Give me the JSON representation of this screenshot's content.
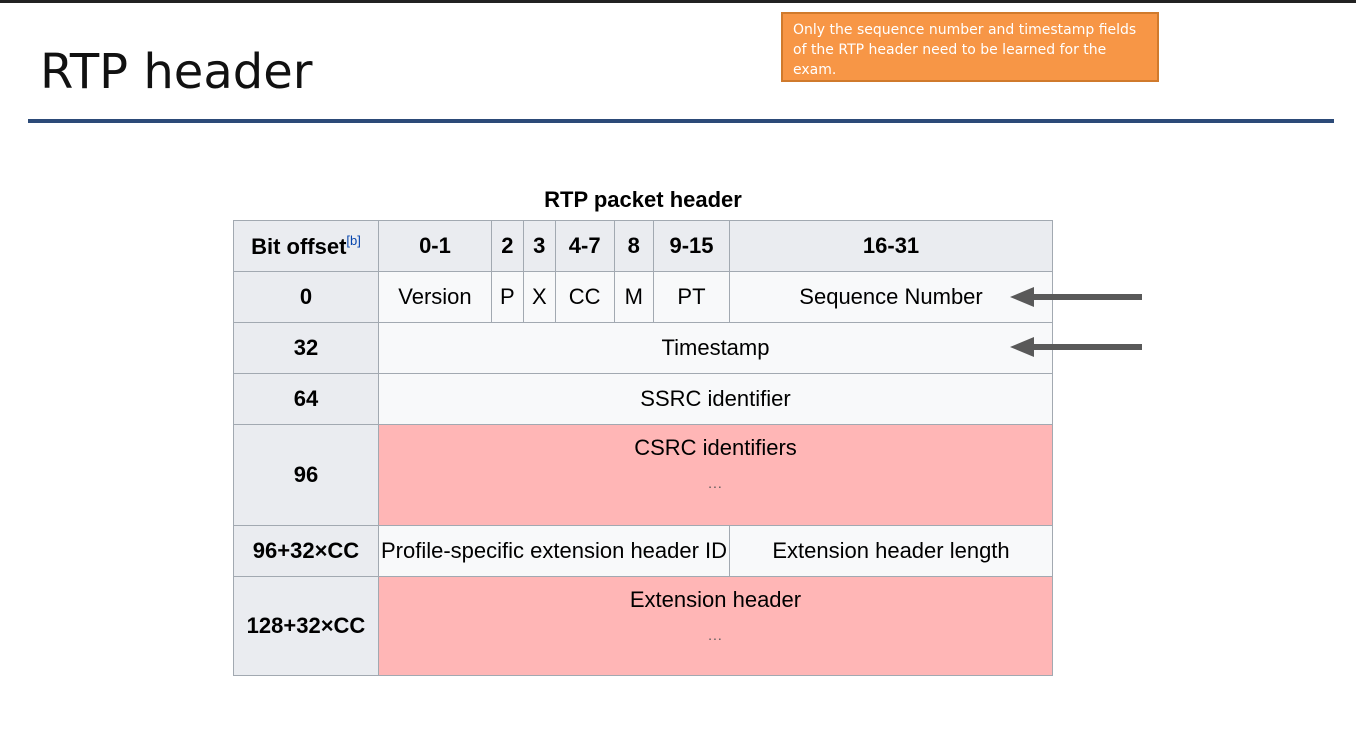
{
  "slide": {
    "title": "RTP header",
    "note": "Only the sequence number and timestamp fields of the RTP header need to be learned for the exam."
  },
  "table": {
    "caption": "RTP packet header",
    "header": {
      "bit_offset": "Bit offset",
      "footnote": "[b]",
      "cols": [
        "0-1",
        "2",
        "3",
        "4-7",
        "8",
        "9-15",
        "16-31"
      ]
    },
    "rows": {
      "r0": {
        "offset": "0",
        "version": "Version",
        "p": "P",
        "x": "X",
        "cc": "CC",
        "m": "M",
        "pt": "PT",
        "seq": "Sequence Number"
      },
      "r32": {
        "offset": "32",
        "value": "Timestamp"
      },
      "r64": {
        "offset": "64",
        "value": "SSRC identifier"
      },
      "r96": {
        "offset": "96",
        "value": "CSRC identifiers",
        "more": "..."
      },
      "r96cc": {
        "offset": "96+32×CC",
        "ext_id": "Profile-specific extension header ID",
        "ext_len": "Extension header length"
      },
      "r128cc": {
        "offset": "128+32×CC",
        "value": "Extension header",
        "more": "..."
      }
    }
  },
  "colors": {
    "accent_rule": "#2c4a78",
    "note_bg": "#f79646",
    "highlight_rows": "#ffb6b6",
    "arrow": "#595959"
  },
  "icons": [
    "arrow-left-icon"
  ]
}
